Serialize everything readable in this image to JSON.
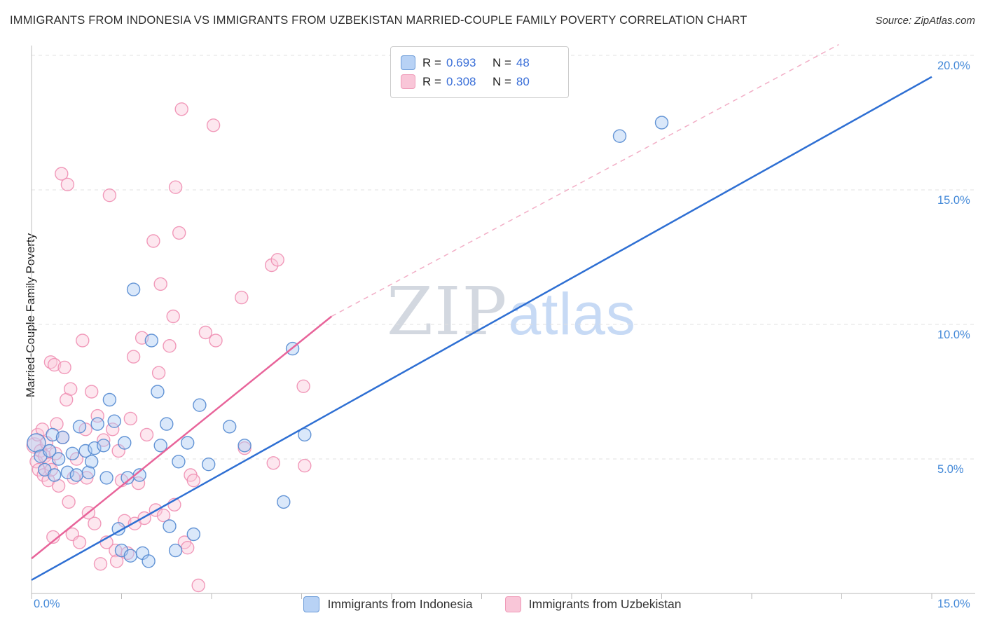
{
  "header": {
    "title": "IMMIGRANTS FROM INDONESIA VS IMMIGRANTS FROM UZBEKISTAN MARRIED-COUPLE FAMILY POVERTY CORRELATION CHART",
    "source": "Source: ZipAtlas.com"
  },
  "watermark": {
    "part1": "ZIP",
    "part2": "atlas"
  },
  "chart_data": {
    "type": "scatter",
    "title": "IMMIGRANTS FROM INDONESIA VS IMMIGRANTS FROM UZBEKISTAN MARRIED-COUPLE FAMILY POVERTY CORRELATION CHART",
    "ylabel": "Married-Couple Family Poverty",
    "xlim": [
      0,
      15.75
    ],
    "ylim": [
      0,
      21
    ],
    "grid": "horizontal-dashed",
    "legend_position": "top-center",
    "legend": {
      "r_label": "R =",
      "n_label": "N ="
    },
    "x_axis": {
      "min_label": "0.0%",
      "max_label": "15.0%",
      "tick_min": 0,
      "tick_max": 15,
      "tick_step": 1.5,
      "unit": "%"
    },
    "y_axis": {
      "ticks": [
        {
          "label": "5.0%",
          "value": 5
        },
        {
          "label": "10.0%",
          "value": 10
        },
        {
          "label": "15.0%",
          "value": 15
        },
        {
          "label": "20.0%",
          "value": 20
        }
      ]
    },
    "series": [
      {
        "name": "Immigrants from Indonesia",
        "r": "0.693",
        "n": "48",
        "fill": "#aecdf5",
        "stroke": "#5288d0",
        "points": [
          [
            0.08,
            5.6,
            13
          ],
          [
            0.15,
            5.1
          ],
          [
            0.22,
            4.6
          ],
          [
            0.3,
            5.3
          ],
          [
            0.35,
            5.9
          ],
          [
            0.38,
            4.4
          ],
          [
            0.45,
            5.0
          ],
          [
            0.52,
            5.8
          ],
          [
            0.6,
            4.5
          ],
          [
            0.68,
            5.2
          ],
          [
            0.75,
            4.4
          ],
          [
            0.8,
            6.2
          ],
          [
            0.9,
            5.3
          ],
          [
            0.95,
            4.5
          ],
          [
            1.0,
            4.9
          ],
          [
            1.05,
            5.4
          ],
          [
            1.1,
            6.3
          ],
          [
            1.2,
            5.5
          ],
          [
            1.25,
            4.3
          ],
          [
            1.3,
            7.2
          ],
          [
            1.38,
            6.4
          ],
          [
            1.45,
            2.4
          ],
          [
            1.5,
            1.6
          ],
          [
            1.55,
            5.6
          ],
          [
            1.6,
            4.3
          ],
          [
            1.65,
            1.4
          ],
          [
            1.7,
            11.3
          ],
          [
            1.8,
            4.4
          ],
          [
            1.85,
            1.5
          ],
          [
            1.95,
            1.2
          ],
          [
            2.0,
            9.4
          ],
          [
            2.1,
            7.5
          ],
          [
            2.15,
            5.5
          ],
          [
            2.25,
            6.3
          ],
          [
            2.3,
            2.5
          ],
          [
            2.4,
            1.6
          ],
          [
            2.45,
            4.9
          ],
          [
            2.6,
            5.6
          ],
          [
            2.7,
            2.2
          ],
          [
            2.8,
            7.0
          ],
          [
            2.95,
            4.8
          ],
          [
            3.3,
            6.2
          ],
          [
            3.55,
            5.5
          ],
          [
            4.2,
            3.4
          ],
          [
            4.35,
            9.1
          ],
          [
            4.55,
            5.9
          ],
          [
            9.8,
            17.0
          ],
          [
            10.5,
            17.5
          ]
        ]
      },
      {
        "name": "Immigrants from Uzbekistan",
        "r": "0.308",
        "n": "80",
        "fill": "#fac9dc",
        "stroke": "#ef8fb2",
        "points": [
          [
            0.05,
            5.5,
            11
          ],
          [
            0.08,
            4.9
          ],
          [
            0.1,
            5.9
          ],
          [
            0.12,
            4.6
          ],
          [
            0.15,
            5.3
          ],
          [
            0.18,
            6.1
          ],
          [
            0.2,
            4.4
          ],
          [
            0.22,
            5.1
          ],
          [
            0.25,
            5.6
          ],
          [
            0.28,
            4.2
          ],
          [
            0.3,
            4.8
          ],
          [
            0.32,
            8.6
          ],
          [
            0.33,
            4.6
          ],
          [
            0.36,
            2.1
          ],
          [
            0.38,
            8.5
          ],
          [
            0.4,
            5.2
          ],
          [
            0.42,
            6.3
          ],
          [
            0.45,
            4.0
          ],
          [
            0.5,
            15.6
          ],
          [
            0.52,
            5.8
          ],
          [
            0.55,
            8.4
          ],
          [
            0.58,
            7.2
          ],
          [
            0.6,
            15.2
          ],
          [
            0.62,
            3.4
          ],
          [
            0.65,
            7.6
          ],
          [
            0.68,
            2.2
          ],
          [
            0.7,
            4.3
          ],
          [
            0.75,
            5.0
          ],
          [
            0.8,
            1.9
          ],
          [
            0.85,
            9.4
          ],
          [
            0.9,
            6.1
          ],
          [
            0.92,
            4.3
          ],
          [
            0.95,
            3.0
          ],
          [
            1.0,
            7.5
          ],
          [
            1.05,
            2.6
          ],
          [
            1.1,
            6.6
          ],
          [
            1.15,
            1.1
          ],
          [
            1.2,
            5.7
          ],
          [
            1.25,
            1.9
          ],
          [
            1.3,
            14.8
          ],
          [
            1.35,
            6.1
          ],
          [
            1.4,
            1.6
          ],
          [
            1.42,
            1.2
          ],
          [
            1.45,
            5.3
          ],
          [
            1.5,
            4.2
          ],
          [
            1.55,
            2.7
          ],
          [
            1.6,
            1.5
          ],
          [
            1.65,
            6.5
          ],
          [
            1.7,
            8.8
          ],
          [
            1.72,
            2.6
          ],
          [
            1.78,
            4.1
          ],
          [
            1.84,
            9.5
          ],
          [
            1.88,
            2.8
          ],
          [
            1.92,
            5.9
          ],
          [
            2.03,
            13.1
          ],
          [
            2.07,
            3.1
          ],
          [
            2.12,
            8.2
          ],
          [
            2.15,
            11.5
          ],
          [
            2.2,
            2.9
          ],
          [
            2.3,
            9.2
          ],
          [
            2.36,
            10.3
          ],
          [
            2.38,
            3.3
          ],
          [
            2.4,
            15.1
          ],
          [
            2.46,
            13.4
          ],
          [
            2.5,
            18.0
          ],
          [
            2.55,
            1.9
          ],
          [
            2.6,
            1.7
          ],
          [
            2.65,
            4.4
          ],
          [
            2.7,
            4.2
          ],
          [
            2.78,
            0.3
          ],
          [
            2.9,
            9.7
          ],
          [
            3.03,
            17.4
          ],
          [
            3.07,
            9.4
          ],
          [
            3.5,
            11.0
          ],
          [
            3.55,
            5.4
          ],
          [
            4.0,
            12.2
          ],
          [
            4.03,
            4.85
          ],
          [
            4.1,
            12.4
          ],
          [
            4.53,
            7.7
          ],
          [
            4.55,
            4.75
          ]
        ]
      }
    ],
    "trend_lines": [
      {
        "series": "Immigrants from Indonesia",
        "style": "solid",
        "color": "#2e6fd3",
        "width": 2.5,
        "x1": 0,
        "y1": 0.5,
        "x2": 15,
        "y2": 19.2
      },
      {
        "series": "Immigrants from Uzbekistan",
        "style": "solid",
        "color": "#e8649a",
        "width": 2.5,
        "x1": 0,
        "y1": 1.3,
        "x2": 5.0,
        "y2": 10.3
      },
      {
        "series": "Immigrants from Uzbekistan",
        "style": "dashed",
        "color": "#f2aec6",
        "width": 1.5,
        "x1": 5.0,
        "y1": 10.3,
        "x2": 13.45,
        "y2": 20.4
      }
    ],
    "accent_color": "#4489d8"
  }
}
